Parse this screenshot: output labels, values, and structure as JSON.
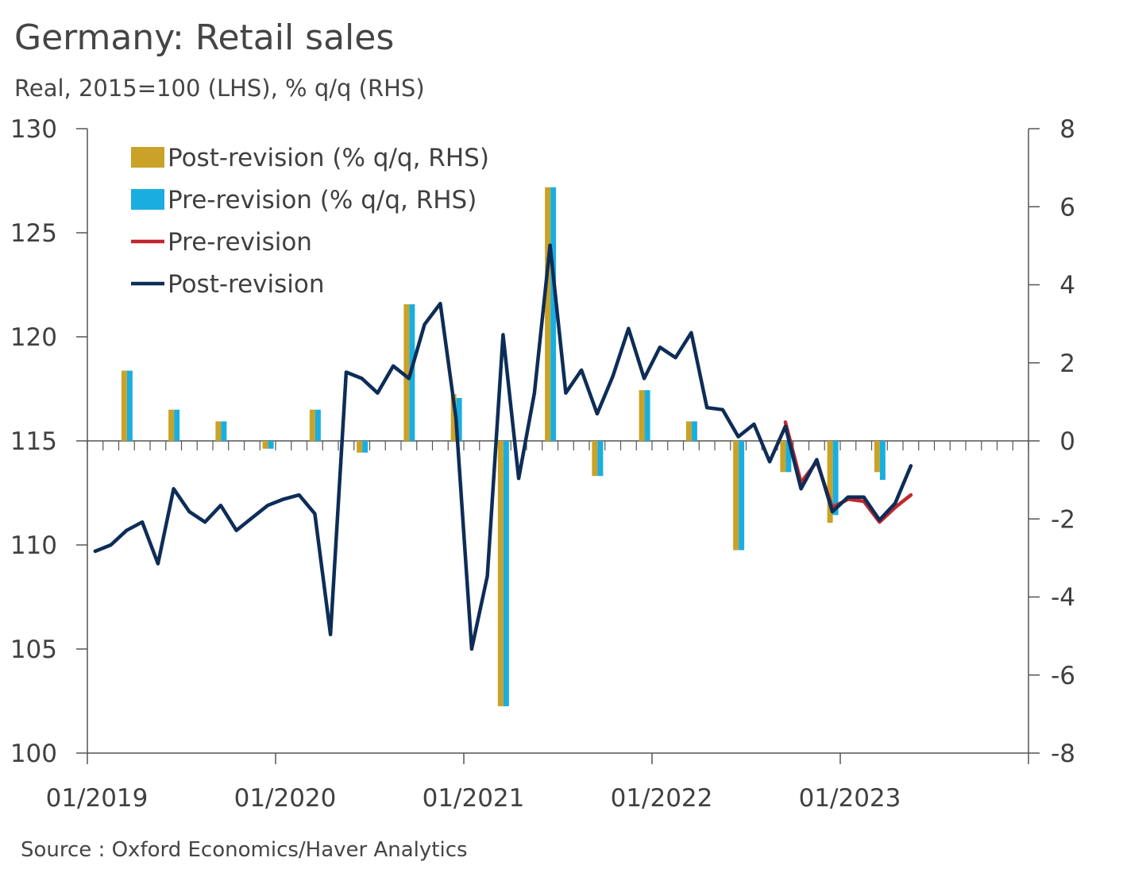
{
  "chart_data": {
    "type": "bar+line",
    "title": "Germany: Retail sales",
    "subtitle": "Real, 2015=100 (LHS), % q/q (RHS)",
    "source": "Source : Oxford Economics/Haver Analytics",
    "x_start": "2019-01",
    "x_end": "2023-12",
    "x_tick_labels": [
      "01/2019",
      "01/2020",
      "01/2021",
      "01/2022",
      "01/2023"
    ],
    "y_left": {
      "range": [
        100,
        130
      ],
      "ticks": [
        "100",
        "105",
        "110",
        "115",
        "120",
        "125",
        "130"
      ]
    },
    "y_right": {
      "range": [
        -8,
        8
      ],
      "ticks": [
        "-8",
        "-6",
        "-4",
        "-2",
        "0",
        "2",
        "4",
        "6",
        "8"
      ]
    },
    "legend": {
      "placement": "top-left",
      "entries": [
        {
          "label": "Post-revision (% q/q, RHS)",
          "kind": "bar",
          "color": "#C9A227"
        },
        {
          "label": "Pre-revision (% q/q, RHS)",
          "kind": "bar",
          "color": "#1AAEE0"
        },
        {
          "label": "Pre-revision",
          "kind": "line",
          "color": "#C0272D"
        },
        {
          "label": "Post-revision",
          "kind": "line",
          "color": "#0D2D57"
        }
      ]
    },
    "bar_series": [
      {
        "name": "Post-revision (% q/q, RHS)",
        "color": "#C9A227",
        "points": [
          {
            "x": "2019-03",
            "y": 1.8
          },
          {
            "x": "2019-06",
            "y": 0.8
          },
          {
            "x": "2019-09",
            "y": 0.5
          },
          {
            "x": "2019-12",
            "y": -0.2
          },
          {
            "x": "2020-03",
            "y": 0.8
          },
          {
            "x": "2020-06",
            "y": -0.3
          },
          {
            "x": "2020-09",
            "y": 3.5
          },
          {
            "x": "2020-12",
            "y": 1.2
          },
          {
            "x": "2021-03",
            "y": -6.8
          },
          {
            "x": "2021-06",
            "y": 6.5
          },
          {
            "x": "2021-09",
            "y": -0.9
          },
          {
            "x": "2021-12",
            "y": 1.3
          },
          {
            "x": "2022-03",
            "y": 0.5
          },
          {
            "x": "2022-06",
            "y": -2.8
          },
          {
            "x": "2022-09",
            "y": -0.8
          },
          {
            "x": "2022-12",
            "y": -2.1
          },
          {
            "x": "2023-03",
            "y": -0.8
          }
        ]
      },
      {
        "name": "Pre-revision (% q/q, RHS)",
        "color": "#1AAEE0",
        "points": [
          {
            "x": "2019-03",
            "y": 1.8
          },
          {
            "x": "2019-06",
            "y": 0.8
          },
          {
            "x": "2019-09",
            "y": 0.5
          },
          {
            "x": "2019-12",
            "y": -0.2
          },
          {
            "x": "2020-03",
            "y": 0.8
          },
          {
            "x": "2020-06",
            "y": -0.3
          },
          {
            "x": "2020-09",
            "y": 3.5
          },
          {
            "x": "2020-12",
            "y": 1.1
          },
          {
            "x": "2021-03",
            "y": -6.8
          },
          {
            "x": "2021-06",
            "y": 6.5
          },
          {
            "x": "2021-09",
            "y": -0.9
          },
          {
            "x": "2021-12",
            "y": 1.3
          },
          {
            "x": "2022-03",
            "y": 0.5
          },
          {
            "x": "2022-06",
            "y": -2.8
          },
          {
            "x": "2022-09",
            "y": -0.8
          },
          {
            "x": "2022-12",
            "y": -1.9
          },
          {
            "x": "2023-03",
            "y": -1.0
          }
        ]
      }
    ],
    "line_series": [
      {
        "name": "Pre-revision",
        "color": "#C0272D",
        "axis": "left",
        "points": [
          {
            "x": "2022-09",
            "y": 115.9
          },
          {
            "x": "2022-10",
            "y": 113.0
          },
          {
            "x": "2022-11",
            "y": 114.0
          },
          {
            "x": "2022-12",
            "y": 111.8
          },
          {
            "x": "2023-01",
            "y": 112.2
          },
          {
            "x": "2023-02",
            "y": 112.1
          },
          {
            "x": "2023-03",
            "y": 111.1
          },
          {
            "x": "2023-04",
            "y": 111.8
          },
          {
            "x": "2023-05",
            "y": 112.4
          }
        ]
      },
      {
        "name": "Post-revision",
        "color": "#0D2D57",
        "axis": "left",
        "points": [
          {
            "x": "2019-01",
            "y": 109.7
          },
          {
            "x": "2019-02",
            "y": 110.0
          },
          {
            "x": "2019-03",
            "y": 110.7
          },
          {
            "x": "2019-04",
            "y": 111.1
          },
          {
            "x": "2019-05",
            "y": 109.1
          },
          {
            "x": "2019-06",
            "y": 112.7
          },
          {
            "x": "2019-07",
            "y": 111.6
          },
          {
            "x": "2019-08",
            "y": 111.1
          },
          {
            "x": "2019-09",
            "y": 111.9
          },
          {
            "x": "2019-10",
            "y": 110.7
          },
          {
            "x": "2019-11",
            "y": 111.3
          },
          {
            "x": "2019-12",
            "y": 111.9
          },
          {
            "x": "2020-01",
            "y": 112.2
          },
          {
            "x": "2020-02",
            "y": 112.4
          },
          {
            "x": "2020-03",
            "y": 111.5
          },
          {
            "x": "2020-04",
            "y": 105.7
          },
          {
            "x": "2020-05",
            "y": 118.3
          },
          {
            "x": "2020-06",
            "y": 118.0
          },
          {
            "x": "2020-07",
            "y": 117.3
          },
          {
            "x": "2020-08",
            "y": 118.6
          },
          {
            "x": "2020-09",
            "y": 118.0
          },
          {
            "x": "2020-10",
            "y": 120.6
          },
          {
            "x": "2020-11",
            "y": 121.6
          },
          {
            "x": "2020-12",
            "y": 116.1
          },
          {
            "x": "2021-01",
            "y": 105.0
          },
          {
            "x": "2021-02",
            "y": 108.5
          },
          {
            "x": "2021-03",
            "y": 120.1
          },
          {
            "x": "2021-04",
            "y": 113.2
          },
          {
            "x": "2021-05",
            "y": 117.3
          },
          {
            "x": "2021-06",
            "y": 124.4
          },
          {
            "x": "2021-07",
            "y": 117.3
          },
          {
            "x": "2021-08",
            "y": 118.4
          },
          {
            "x": "2021-09",
            "y": 116.3
          },
          {
            "x": "2021-10",
            "y": 118.1
          },
          {
            "x": "2021-11",
            "y": 120.4
          },
          {
            "x": "2021-12",
            "y": 118.0
          },
          {
            "x": "2022-01",
            "y": 119.5
          },
          {
            "x": "2022-02",
            "y": 119.0
          },
          {
            "x": "2022-03",
            "y": 120.2
          },
          {
            "x": "2022-04",
            "y": 116.6
          },
          {
            "x": "2022-05",
            "y": 116.5
          },
          {
            "x": "2022-06",
            "y": 115.2
          },
          {
            "x": "2022-07",
            "y": 115.8
          },
          {
            "x": "2022-08",
            "y": 114.0
          },
          {
            "x": "2022-09",
            "y": 115.7
          },
          {
            "x": "2022-10",
            "y": 112.7
          },
          {
            "x": "2022-11",
            "y": 114.1
          },
          {
            "x": "2022-12",
            "y": 111.6
          },
          {
            "x": "2023-01",
            "y": 112.3
          },
          {
            "x": "2023-02",
            "y": 112.3
          },
          {
            "x": "2023-03",
            "y": 111.2
          },
          {
            "x": "2023-04",
            "y": 112.0
          },
          {
            "x": "2023-05",
            "y": 113.8
          }
        ]
      }
    ]
  }
}
